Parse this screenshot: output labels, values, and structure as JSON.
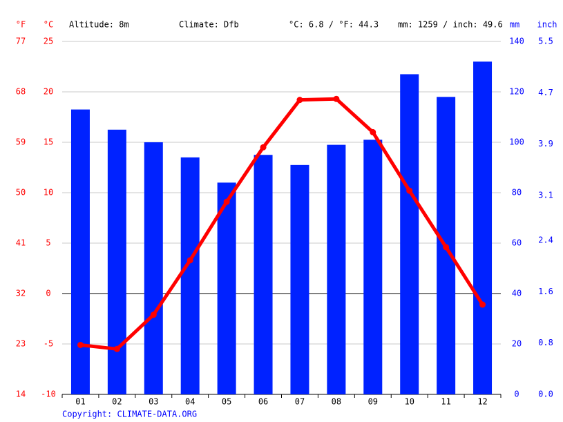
{
  "chart_data": {
    "type": "climate",
    "header": {
      "f_unit": "°F",
      "c_unit": "°C",
      "altitude": "Altitude: 8m",
      "climate": "Climate: Dfb",
      "temp_mean": "°C: 6.8 / °F: 44.3",
      "precip_total": "mm: 1259 / inch: 49.6",
      "mm_unit": "mm",
      "inch_unit": "inch"
    },
    "categories": [
      "01",
      "02",
      "03",
      "04",
      "05",
      "06",
      "07",
      "08",
      "09",
      "10",
      "11",
      "12"
    ],
    "series": [
      {
        "type": "bar",
        "axis": "y2",
        "color": "#0022ff",
        "values": [
          113,
          105,
          100,
          94,
          84,
          95,
          91,
          99,
          101,
          127,
          118,
          132
        ]
      },
      {
        "type": "line",
        "color": "#ff0000",
        "values": [
          -5.1,
          -5.5,
          -2.1,
          3.3,
          9.1,
          14.5,
          19.2,
          19.3,
          16.0,
          10.2,
          4.6,
          -1.1
        ]
      }
    ],
    "ylim": [
      -10,
      25
    ],
    "yticks": [
      -10,
      -5,
      0,
      5,
      10,
      15,
      20,
      25
    ],
    "y2lim": [
      0,
      140
    ],
    "y2ticks": [
      0,
      20,
      40,
      60,
      80,
      100,
      120,
      140
    ],
    "flim": [
      14,
      77
    ],
    "fticks": [
      14,
      23,
      32,
      41,
      50,
      59,
      68,
      77
    ],
    "inchlim": [
      0,
      5.5
    ],
    "inchticks": [
      {
        "value": 0,
        "label": "0.0"
      },
      0.8,
      1.6,
      2.4,
      3.1,
      3.9,
      4.7,
      5.5
    ],
    "grid": true,
    "copyright": "Copyright: CLIMATE-DATA.ORG"
  }
}
